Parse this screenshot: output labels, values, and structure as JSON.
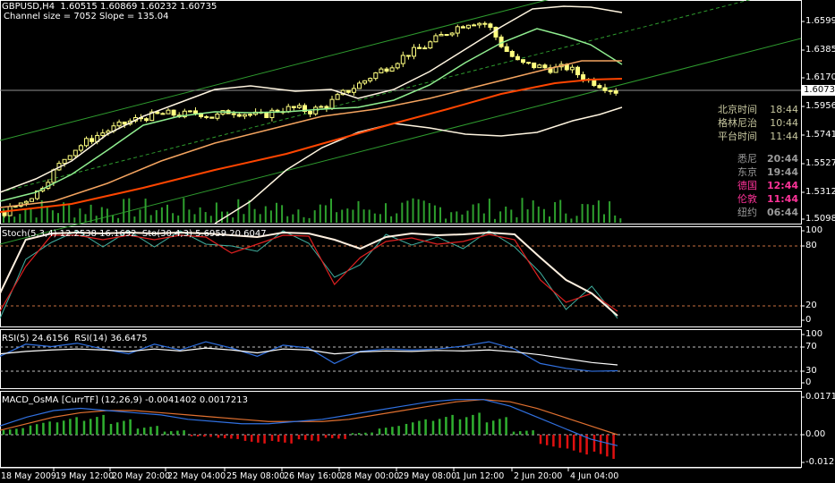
{
  "header": {
    "title": "GBPUSD,H4  1.60515 1.60869 1.60232 1.60735",
    "subtitle": "Channel size = 7052 Slope = 135.04"
  },
  "current_price": "1.60735",
  "price_axis": [
    "1.65995",
    "1.63850",
    "1.61705",
    "1.59560",
    "1.57415",
    "1.55270",
    "1.53125",
    "1.50980"
  ],
  "clocks": [
    {
      "name": "北京时间",
      "time": "18:44",
      "color": "#c8c8a0"
    },
    {
      "name": "格林尼治",
      "time": "10:44",
      "color": "#c8c8a0"
    },
    {
      "name": "平台时间",
      "time": "11:44",
      "color": "#c8c8a0"
    },
    {
      "name": "悉尼",
      "time": "20:44",
      "color": "#9a9a9a"
    },
    {
      "name": "东京",
      "time": "19:44",
      "color": "#9a9a9a"
    },
    {
      "name": "德国",
      "time": "12:44",
      "color": "#ff3399"
    },
    {
      "name": "伦敦",
      "time": "11:44",
      "color": "#ff3399"
    },
    {
      "name": "纽约",
      "time": "06:44",
      "color": "#9a9a9a"
    }
  ],
  "stoch": {
    "label": "Stoch(5,3,4) 12.2538 16.1692  Sto(30,4,3) 5.6959 20.6047",
    "axis": [
      "100",
      "80",
      "20",
      "0"
    ]
  },
  "rsi": {
    "label": "RSI(5) 24.6156  RSI(14) 36.6475",
    "axis": [
      "100",
      "70",
      "30",
      "0"
    ]
  },
  "macd": {
    "label": "MACD_OsMA [CurrTF] (12,26,9) -0.0041402 0.0017213",
    "axis": [
      "0.017102",
      "0.00",
      "-0.01271"
    ]
  },
  "time_axis": [
    "18 May 2009",
    "19 May 12:00",
    "20 May 20:00",
    "22 May 04:00",
    "25 May 08:00",
    "26 May 16:00",
    "28 May 00:00",
    "29 May 08:00",
    "1 Jun 12:00",
    "2 Jun 20:00",
    "4 Jun 04:00"
  ],
  "colors": {
    "bull": "#ffff80",
    "channel": "#2e9a2e",
    "ma_fast": "#90ee90",
    "ma_mid": "#f4a460",
    "ma_slow": "#ff4500",
    "band": "#fff5e0",
    "volume": "#2ea02e"
  },
  "chart_data": {
    "type": "candlestick",
    "symbol": "GBPUSD",
    "timeframe": "H4",
    "ylim": [
      1.5045,
      1.669
    ],
    "close_anchors": [
      1.515,
      1.522,
      1.53,
      1.545,
      1.56,
      1.568,
      1.575,
      1.58,
      1.585,
      1.588,
      1.59,
      1.589,
      1.591,
      1.587,
      1.592,
      1.59,
      1.588,
      1.593,
      1.594,
      1.592,
      1.596,
      1.605,
      1.612,
      1.62,
      1.627,
      1.635,
      1.64,
      1.648,
      1.655,
      1.66,
      1.658,
      1.64,
      1.628,
      1.626,
      1.624,
      1.625,
      1.617,
      1.612,
      1.607
    ],
    "stoch_main": [
      30,
      90,
      97,
      98,
      97,
      98,
      97,
      98,
      97,
      95,
      93,
      98,
      97,
      90,
      80,
      93,
      97,
      95,
      96,
      98,
      96,
      70,
      45,
      30,
      5
    ],
    "stoch_signal": [
      10,
      60,
      95,
      95,
      90,
      95,
      90,
      95,
      93,
      75,
      85,
      95,
      94,
      40,
      70,
      88,
      92,
      85,
      88,
      96,
      90,
      45,
      20,
      30,
      10
    ],
    "rsi14": [
      60,
      65,
      68,
      70,
      68,
      65,
      70,
      66,
      72,
      68,
      62,
      70,
      68,
      60,
      64,
      66,
      65,
      67,
      66,
      68,
      64,
      58,
      50,
      42,
      37
    ],
    "rsi5": [
      55,
      80,
      75,
      82,
      70,
      60,
      80,
      68,
      85,
      72,
      55,
      78,
      72,
      40,
      65,
      70,
      68,
      70,
      76,
      85,
      70,
      40,
      30,
      24,
      25
    ],
    "macd_hist": [
      0.003,
      0.006,
      0.008,
      0.009,
      0.007,
      0.004,
      0.002,
      -0.001,
      -0.002,
      -0.004,
      -0.004,
      -0.003,
      -0.002,
      0.001,
      0.004,
      0.007,
      0.009,
      0.01,
      0.008,
      0.002,
      -0.006,
      -0.009,
      -0.011,
      -0.012
    ],
    "macd_main": [
      0.004,
      0.008,
      0.011,
      0.012,
      0.011,
      0.01,
      0.009,
      0.007,
      0.006,
      0.005,
      0.005,
      0.006,
      0.007,
      0.009,
      0.011,
      0.013,
      0.015,
      0.016,
      0.016,
      0.013,
      0.008,
      0.003,
      -0.002,
      -0.005
    ],
    "macd_signal": [
      0.002,
      0.005,
      0.008,
      0.01,
      0.011,
      0.011,
      0.01,
      0.009,
      0.008,
      0.007,
      0.006,
      0.006,
      0.006,
      0.007,
      0.009,
      0.011,
      0.013,
      0.015,
      0.016,
      0.015,
      0.012,
      0.008,
      0.004,
      0.0
    ]
  }
}
